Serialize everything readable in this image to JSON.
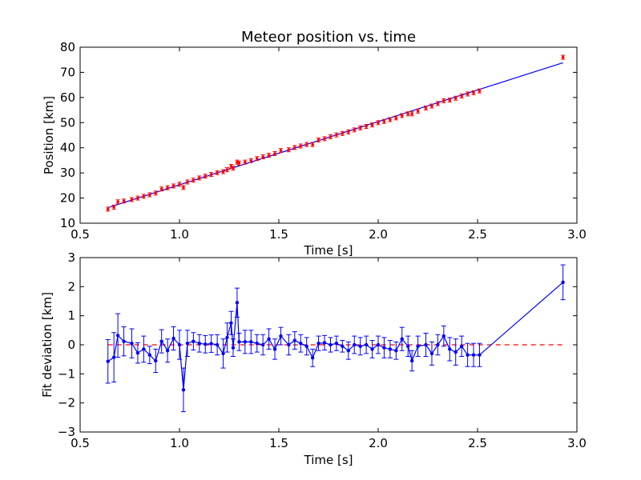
{
  "chart_data": [
    {
      "type": "scatter",
      "title": "Meteor position vs. time",
      "xlabel": "Time [s]",
      "ylabel": "Position [km]",
      "xlim": [
        0.5,
        3.0
      ],
      "ylim": [
        10,
        80
      ],
      "xticks": [
        "0.5",
        "1.0",
        "1.5",
        "2.0",
        "2.5",
        "3.0"
      ],
      "yticks": [
        "10",
        "20",
        "30",
        "40",
        "50",
        "60",
        "70",
        "80"
      ],
      "fit_line": {
        "x": [
          0.64,
          2.93
        ],
        "y": [
          16.2,
          73.8
        ]
      },
      "colors": {
        "points": "#ff0000",
        "fit": "#0000ff"
      },
      "x": [
        0.64,
        0.67,
        0.69,
        0.72,
        0.76,
        0.79,
        0.82,
        0.85,
        0.88,
        0.91,
        0.94,
        0.97,
        1.0,
        1.02,
        1.04,
        1.07,
        1.1,
        1.13,
        1.16,
        1.19,
        1.22,
        1.24,
        1.26,
        1.27,
        1.29,
        1.3,
        1.33,
        1.36,
        1.39,
        1.42,
        1.45,
        1.48,
        1.51,
        1.55,
        1.58,
        1.61,
        1.64,
        1.67,
        1.7,
        1.73,
        1.76,
        1.79,
        1.82,
        1.85,
        1.88,
        1.91,
        1.94,
        1.97,
        2.0,
        2.03,
        2.06,
        2.09,
        2.12,
        2.15,
        2.17,
        2.2,
        2.24,
        2.27,
        2.3,
        2.33,
        2.36,
        2.39,
        2.42,
        2.45,
        2.48,
        2.51,
        2.93
      ],
      "y": [
        15.6,
        16.4,
        18.5,
        18.8,
        19.4,
        20.0,
        20.7,
        21.3,
        22.0,
        23.6,
        24.1,
        24.8,
        25.5,
        24.2,
        26.4,
        27.1,
        28.0,
        28.7,
        29.4,
        30.1,
        30.5,
        31.3,
        32.6,
        31.9,
        34.3,
        33.9,
        34.3,
        34.9,
        35.7,
        36.4,
        37.0,
        37.7,
        38.9,
        39.2,
        40.1,
        40.7,
        41.3,
        41.3,
        43.1,
        43.6,
        44.4,
        45.1,
        45.7,
        46.3,
        47.1,
        47.9,
        48.5,
        49.1,
        50.0,
        50.5,
        51.2,
        51.9,
        52.8,
        53.5,
        53.5,
        54.6,
        55.8,
        56.6,
        57.6,
        58.7,
        59.0,
        59.7,
        60.6,
        61.4,
        61.9,
        62.6,
        76.0
      ]
    },
    {
      "type": "line",
      "xlabel": "Time [s]",
      "ylabel": "Fit deviation [km]",
      "xlim": [
        0.5,
        3.0
      ],
      "ylim": [
        -3,
        3
      ],
      "xticks": [
        "0.5",
        "1.0",
        "1.5",
        "2.0",
        "2.5",
        "3.0"
      ],
      "yticks": [
        "3",
        "2",
        "1",
        "0",
        "−1",
        "−2",
        "−3"
      ],
      "zero_line": {
        "x": [
          0.64,
          2.93
        ],
        "y": [
          0,
          0
        ]
      },
      "colors": {
        "series": "#0000ff",
        "reference": "#ff0000"
      },
      "x": [
        0.64,
        0.67,
        0.69,
        0.72,
        0.76,
        0.79,
        0.82,
        0.85,
        0.88,
        0.91,
        0.94,
        0.97,
        1.0,
        1.02,
        1.04,
        1.07,
        1.1,
        1.13,
        1.16,
        1.19,
        1.22,
        1.24,
        1.26,
        1.27,
        1.29,
        1.3,
        1.33,
        1.36,
        1.39,
        1.42,
        1.45,
        1.48,
        1.51,
        1.55,
        1.58,
        1.61,
        1.64,
        1.67,
        1.7,
        1.73,
        1.76,
        1.79,
        1.82,
        1.85,
        1.88,
        1.91,
        1.94,
        1.97,
        2.0,
        2.03,
        2.06,
        2.09,
        2.12,
        2.15,
        2.17,
        2.2,
        2.24,
        2.27,
        2.3,
        2.33,
        2.36,
        2.39,
        2.42,
        2.45,
        2.48,
        2.51,
        2.93
      ],
      "y": [
        -0.57,
        -0.43,
        0.32,
        0.12,
        0.05,
        -0.28,
        -0.15,
        -0.35,
        -0.55,
        0.12,
        -0.2,
        0.22,
        0.0,
        -1.55,
        0.05,
        0.12,
        0.05,
        0.02,
        0.04,
        0.0,
        -0.3,
        0.25,
        0.75,
        -0.1,
        1.45,
        0.1,
        0.1,
        0.1,
        0.05,
        0.0,
        0.2,
        -0.15,
        0.3,
        0.0,
        0.15,
        0.05,
        -0.05,
        -0.45,
        0.05,
        0.07,
        0.0,
        0.05,
        -0.05,
        -0.2,
        0.0,
        -0.05,
        0.0,
        -0.15,
        0.0,
        -0.1,
        -0.15,
        -0.2,
        0.2,
        -0.05,
        -0.55,
        -0.05,
        0.0,
        -0.3,
        0.0,
        0.3,
        -0.15,
        -0.25,
        -0.05,
        -0.35,
        -0.35,
        -0.35,
        2.15
      ],
      "err": [
        0.75,
        0.85,
        0.75,
        0.5,
        0.5,
        0.35,
        0.45,
        0.3,
        0.4,
        0.4,
        0.4,
        0.4,
        0.5,
        0.75,
        0.45,
        0.3,
        0.3,
        0.3,
        0.3,
        0.35,
        0.5,
        0.5,
        0.4,
        0.3,
        0.5,
        0.3,
        0.4,
        0.4,
        0.3,
        0.35,
        0.35,
        0.35,
        0.3,
        0.35,
        0.3,
        0.3,
        0.3,
        0.3,
        0.25,
        0.25,
        0.25,
        0.25,
        0.2,
        0.3,
        0.3,
        0.3,
        0.3,
        0.3,
        0.3,
        0.35,
        0.3,
        0.3,
        0.4,
        0.35,
        0.35,
        0.35,
        0.4,
        0.4,
        0.35,
        0.35,
        0.4,
        0.45,
        0.35,
        0.4,
        0.4,
        0.4,
        0.6
      ]
    }
  ]
}
